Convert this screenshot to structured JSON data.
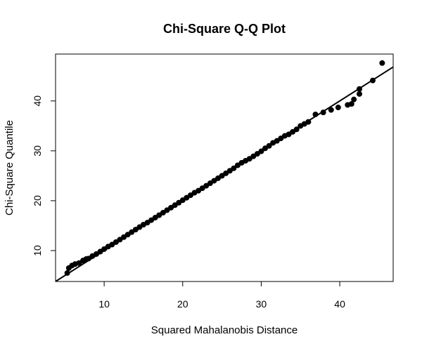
{
  "chart_data": {
    "type": "scatter",
    "title": "Chi-Square Q-Q Plot",
    "x_label": "Squared Mahalanobis Distance",
    "y_label": "Chi-Square Quantile",
    "color": "#000000",
    "xlim": [
      3.81,
      46.8
    ],
    "ylim": [
      3.8,
      49.4
    ],
    "xticks": [
      10,
      20,
      30,
      40
    ],
    "yticks": [
      10,
      20,
      30,
      40
    ],
    "reference_line": {
      "intercept": 0,
      "slope": 1
    },
    "x": [
      5.3,
      5.5,
      5.9,
      6.3,
      6.8,
      7.3,
      7.7,
      8.0,
      8.5,
      9.0,
      9.5,
      10,
      10.5,
      11,
      11.5,
      12,
      12.5,
      13,
      13.5,
      14,
      14.5,
      15,
      15.5,
      16,
      16.5,
      17,
      17.5,
      18,
      18.5,
      19,
      19.5,
      20,
      20.5,
      21,
      21.5,
      22,
      22.5,
      23,
      23.5,
      24,
      24.5,
      25,
      25.5,
      26,
      26.5,
      27,
      27.5,
      28,
      28.5,
      29,
      29.5,
      30,
      30.5,
      31,
      31.5,
      32,
      32.5,
      33,
      33.5,
      34,
      34.5,
      35,
      35.5,
      36,
      36.9,
      37.9,
      38.9,
      39.8,
      41.0,
      41.5,
      41.8,
      42.5,
      42.5,
      44.2,
      45.4
    ],
    "values": [
      5.5,
      6.5,
      7.0,
      7.3,
      7.5,
      8.0,
      8.3,
      8.4,
      8.9,
      9.3,
      9.8,
      10.3,
      10.8,
      11.2,
      11.7,
      12.2,
      12.7,
      13.2,
      13.7,
      14.2,
      14.7,
      15.2,
      15.6,
      16.1,
      16.6,
      17.1,
      17.6,
      18.1,
      18.6,
      19.1,
      19.6,
      20.1,
      20.6,
      21.1,
      21.6,
      22.0,
      22.5,
      23.0,
      23.5,
      24.0,
      24.5,
      25.0,
      25.5,
      26.0,
      26.5,
      27.1,
      27.6,
      28.0,
      28.4,
      28.9,
      29.4,
      29.9,
      30.5,
      31.0,
      31.6,
      32.0,
      32.5,
      33.0,
      33.3,
      33.8,
      34.3,
      35.0,
      35.4,
      35.8,
      37.3,
      37.7,
      38.2,
      38.7,
      39.2,
      39.4,
      40.3,
      41.4,
      42.4,
      44.1,
      47.6
    ]
  }
}
